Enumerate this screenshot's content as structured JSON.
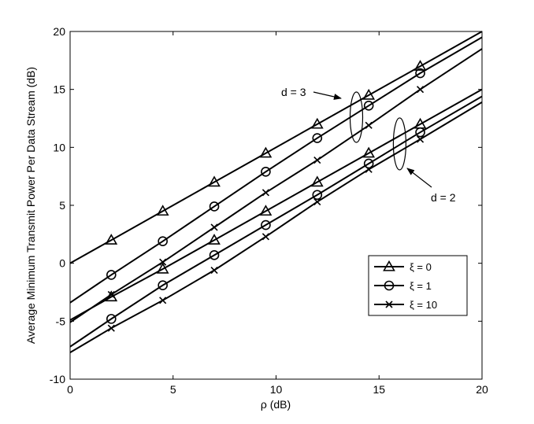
{
  "chart_data": {
    "type": "line",
    "title": "",
    "xlabel": "ρ (dB)",
    "ylabel": "Average Minimum Transmit Power Per Data Stream (dB)",
    "xlim": [
      0,
      20
    ],
    "ylim": [
      -10,
      20
    ],
    "xticks": [
      0,
      5,
      10,
      15,
      20
    ],
    "yticks": [
      -10,
      -5,
      0,
      5,
      10,
      15,
      20
    ],
    "grid": false,
    "legend": {
      "placement": "lower-right",
      "entries": [
        {
          "label": "ξ = 0",
          "marker": "triangle"
        },
        {
          "label": "ξ = 1",
          "marker": "circle"
        },
        {
          "label": "ξ = 10",
          "marker": "x"
        }
      ]
    },
    "marker_x": [
      2,
      4.5,
      7,
      9.5,
      12,
      14.5,
      17
    ],
    "series": [
      {
        "group": "d = 3",
        "marker": "triangle",
        "x": [
          0,
          20
        ],
        "y": [
          0,
          20
        ],
        "marker_y": [
          2,
          4.5,
          7,
          9.5,
          12,
          14.5,
          17
        ]
      },
      {
        "group": "d = 3",
        "marker": "circle",
        "x": [
          0,
          20
        ],
        "y": [
          -3.4,
          19.5
        ],
        "marker_y": [
          -1,
          1.9,
          4.9,
          7.9,
          10.8,
          13.6,
          16.4
        ]
      },
      {
        "group": "d = 3",
        "marker": "x",
        "x": [
          0,
          20
        ],
        "y": [
          -5.1,
          18.5
        ],
        "marker_y": [
          -2.7,
          0.1,
          3.1,
          6.1,
          8.9,
          11.9,
          15
        ]
      },
      {
        "group": "d = 2",
        "marker": "triangle",
        "x": [
          0,
          20
        ],
        "y": [
          -4.9,
          15
        ],
        "marker_y": [
          -2.9,
          -0.5,
          2,
          4.5,
          7,
          9.5,
          12
        ]
      },
      {
        "group": "d = 2",
        "marker": "circle",
        "x": [
          0,
          20
        ],
        "y": [
          -7.2,
          14.4
        ],
        "marker_y": [
          -4.8,
          -1.9,
          0.7,
          3.3,
          5.9,
          8.6,
          11.3
        ]
      },
      {
        "group": "d = 2",
        "marker": "x",
        "x": [
          0,
          20
        ],
        "y": [
          -7.7,
          13.9
        ],
        "marker_y": [
          -5.6,
          -3.2,
          -0.6,
          2.3,
          5.3,
          8.1,
          10.7
        ]
      }
    ],
    "annotations": [
      {
        "text": "d = 3"
      },
      {
        "text": "d = 2"
      }
    ]
  }
}
